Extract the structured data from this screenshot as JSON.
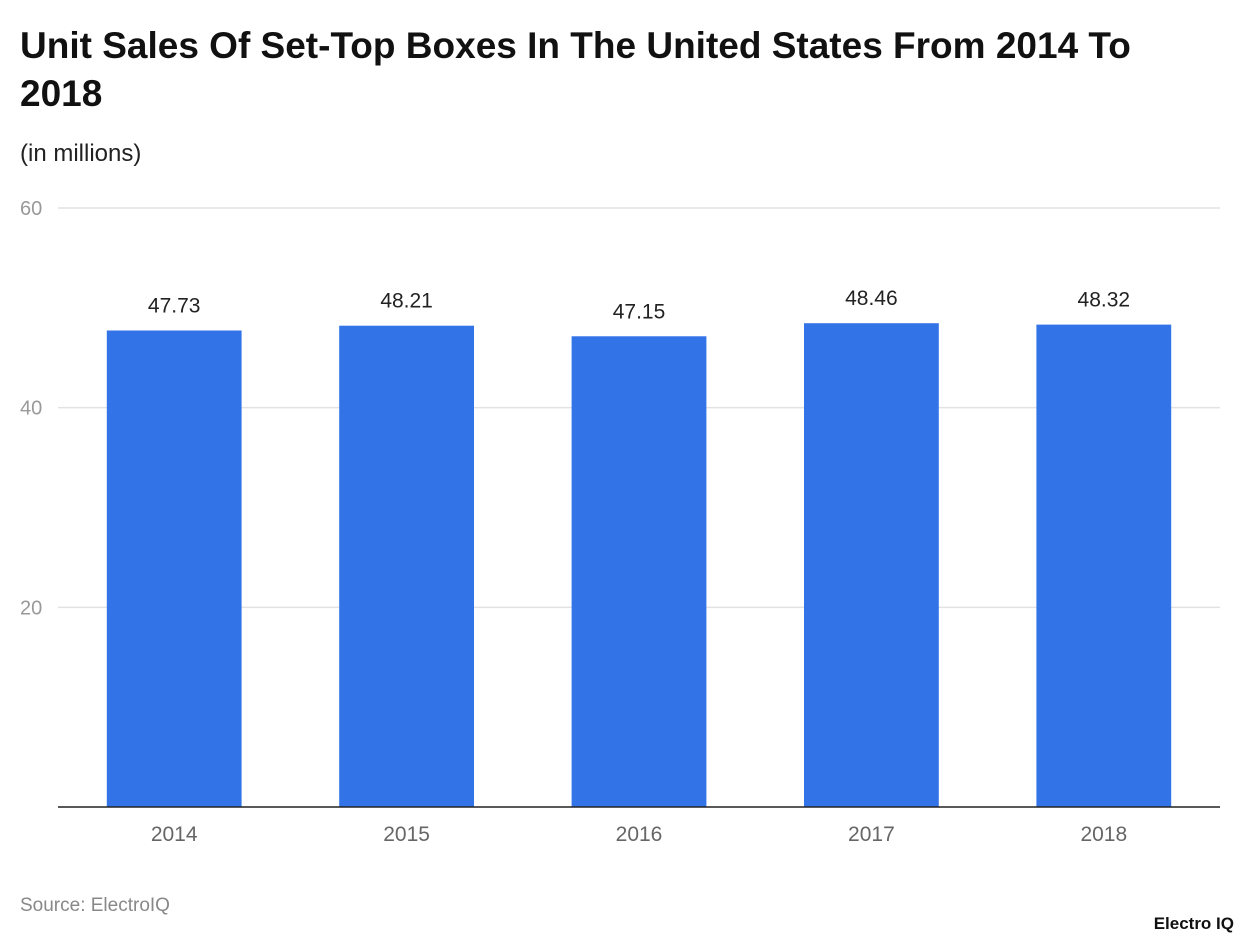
{
  "chart_data": {
    "type": "bar",
    "title": "Unit Sales Of Set-Top Boxes In The United States From 2014 To 2018",
    "subtitle": "(in millions)",
    "categories": [
      "2014",
      "2015",
      "2016",
      "2017",
      "2018"
    ],
    "values": [
      47.73,
      48.21,
      47.15,
      48.46,
      48.32
    ],
    "data_labels": [
      "47.73",
      "48.21",
      "47.15",
      "48.46",
      "48.32"
    ],
    "xlabel": "",
    "ylabel": "",
    "ylim": [
      0,
      60
    ],
    "yticks": [
      20,
      40,
      60
    ],
    "ytick_labels": [
      "20",
      "40",
      "60"
    ],
    "grid": true,
    "bar_color": "#3273e8"
  },
  "source": "Source: ElectroIQ",
  "logo": "Electro IQ"
}
